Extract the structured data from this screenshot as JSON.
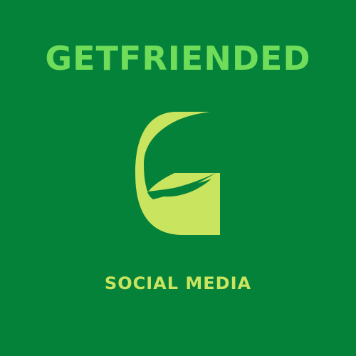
{
  "brand": {
    "name": "GETFRIENDED",
    "tagline": "SOCIAL MEDIA",
    "logo_icon": "letter-g-logo-icon"
  },
  "colors": {
    "background": "#05823a",
    "name_text": "#6fdd5a",
    "tagline_text": "#c9e45e",
    "logo_fill": "#c9e45e"
  }
}
